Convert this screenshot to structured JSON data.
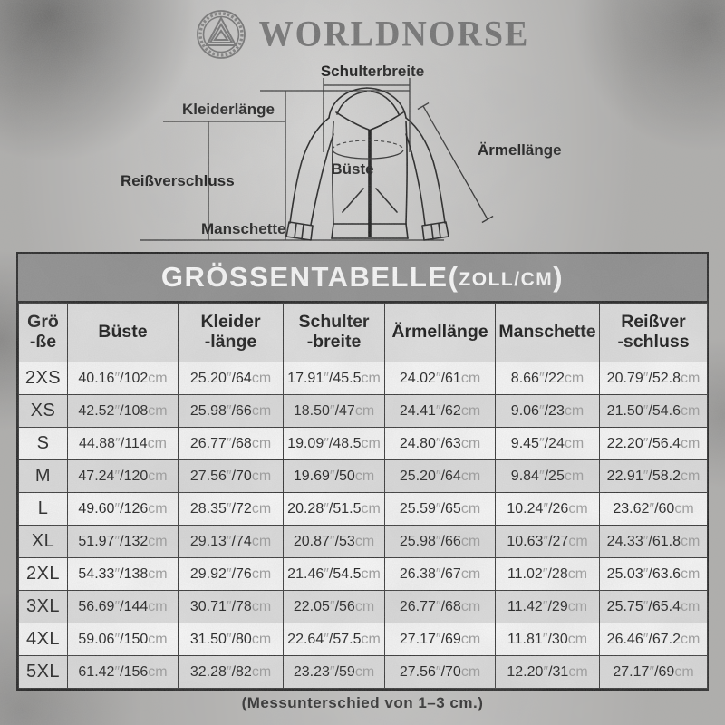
{
  "brand": {
    "name": "WORLDNORSE"
  },
  "diagram": {
    "labels": {
      "schulterbreite": "Schulterbreite",
      "kleiderlaenge": "Kleiderlänge",
      "reissverschluss": "Reißverschluss",
      "manschette": "Manschette",
      "bueste": "Büste",
      "aermellaenge": "Ärmellänge"
    }
  },
  "table": {
    "title": {
      "main": "GRÖSSENTABELLE",
      "open": "(",
      "unit": "ZOLL/CM",
      "close": ")"
    },
    "unit_inch": "″",
    "unit_cm": "cm",
    "columns": [
      {
        "key": "groesse",
        "lines": [
          "Grö",
          "-ße"
        ]
      },
      {
        "key": "bueste",
        "lines": [
          "Büste"
        ]
      },
      {
        "key": "kleiderlaenge",
        "lines": [
          "Kleider",
          "-länge"
        ]
      },
      {
        "key": "schulterbreite",
        "lines": [
          "Schulter",
          "-breite"
        ]
      },
      {
        "key": "aermellaenge",
        "lines": [
          "Ärmellänge"
        ]
      },
      {
        "key": "manschette",
        "lines": [
          "Manschette"
        ]
      },
      {
        "key": "reissverschluss",
        "lines": [
          "Reißver",
          "-schluss"
        ]
      }
    ],
    "rows": [
      {
        "size": "2XS",
        "cells": [
          {
            "in": "40.16",
            "cm": "102"
          },
          {
            "in": "25.20",
            "cm": "64"
          },
          {
            "in": "17.91",
            "cm": "45.5"
          },
          {
            "in": "24.02",
            "cm": "61"
          },
          {
            "in": "8.66",
            "cm": "22"
          },
          {
            "in": "20.79",
            "cm": "52.8"
          }
        ]
      },
      {
        "size": "XS",
        "cells": [
          {
            "in": "42.52",
            "cm": "108"
          },
          {
            "in": "25.98",
            "cm": "66"
          },
          {
            "in": "18.50",
            "cm": "47"
          },
          {
            "in": "24.41",
            "cm": "62"
          },
          {
            "in": "9.06",
            "cm": "23"
          },
          {
            "in": "21.50",
            "cm": "54.6"
          }
        ]
      },
      {
        "size": "S",
        "cells": [
          {
            "in": "44.88",
            "cm": "114"
          },
          {
            "in": "26.77",
            "cm": "68"
          },
          {
            "in": "19.09",
            "cm": "48.5"
          },
          {
            "in": "24.80",
            "cm": "63"
          },
          {
            "in": "9.45",
            "cm": "24"
          },
          {
            "in": "22.20",
            "cm": "56.4"
          }
        ]
      },
      {
        "size": "M",
        "cells": [
          {
            "in": "47.24",
            "cm": "120"
          },
          {
            "in": "27.56",
            "cm": "70"
          },
          {
            "in": "19.69",
            "cm": "50"
          },
          {
            "in": "25.20",
            "cm": "64"
          },
          {
            "in": "9.84",
            "cm": "25"
          },
          {
            "in": "22.91",
            "cm": "58.2"
          }
        ]
      },
      {
        "size": "L",
        "cells": [
          {
            "in": "49.60",
            "cm": "126"
          },
          {
            "in": "28.35",
            "cm": "72"
          },
          {
            "in": "20.28",
            "cm": "51.5"
          },
          {
            "in": "25.59",
            "cm": "65"
          },
          {
            "in": "10.24",
            "cm": "26"
          },
          {
            "in": "23.62",
            "cm": "60"
          }
        ]
      },
      {
        "size": "XL",
        "cells": [
          {
            "in": "51.97",
            "cm": "132"
          },
          {
            "in": "29.13",
            "cm": "74"
          },
          {
            "in": "20.87",
            "cm": "53"
          },
          {
            "in": "25.98",
            "cm": "66"
          },
          {
            "in": "10.63",
            "cm": "27"
          },
          {
            "in": "24.33",
            "cm": "61.8"
          }
        ]
      },
      {
        "size": "2XL",
        "cells": [
          {
            "in": "54.33",
            "cm": "138"
          },
          {
            "in": "29.92",
            "cm": "76"
          },
          {
            "in": "21.46",
            "cm": "54.5"
          },
          {
            "in": "26.38",
            "cm": "67"
          },
          {
            "in": "11.02",
            "cm": "28"
          },
          {
            "in": "25.03",
            "cm": "63.6"
          }
        ]
      },
      {
        "size": "3XL",
        "cells": [
          {
            "in": "56.69",
            "cm": "144"
          },
          {
            "in": "30.71",
            "cm": "78"
          },
          {
            "in": "22.05",
            "cm": "56"
          },
          {
            "in": "26.77",
            "cm": "68"
          },
          {
            "in": "11.42",
            "cm": "29"
          },
          {
            "in": "25.75",
            "cm": "65.4"
          }
        ]
      },
      {
        "size": "4XL",
        "cells": [
          {
            "in": "59.06",
            "cm": "150"
          },
          {
            "in": "31.50",
            "cm": "80"
          },
          {
            "in": "22.64",
            "cm": "57.5"
          },
          {
            "in": "27.17",
            "cm": "69"
          },
          {
            "in": "11.81",
            "cm": "30"
          },
          {
            "in": "26.46",
            "cm": "67.2"
          }
        ]
      },
      {
        "size": "5XL",
        "cells": [
          {
            "in": "61.42",
            "cm": "156"
          },
          {
            "in": "32.28",
            "cm": "82"
          },
          {
            "in": "23.23",
            "cm": "59"
          },
          {
            "in": "27.56",
            "cm": "70"
          },
          {
            "in": "12.20",
            "cm": "31"
          },
          {
            "in": "27.17",
            "cm": "69"
          }
        ]
      }
    ]
  },
  "footnote": "(Messunterschied von 1–3 cm.)",
  "colors": {
    "title_bar": "#8a8a8a",
    "row_alt": "#dddddd",
    "row_base": "#fbfbfb",
    "unit_text": "#9a9a9a",
    "grid_border": "#2c2c2c",
    "brand_gray": "#6e6e6e"
  }
}
